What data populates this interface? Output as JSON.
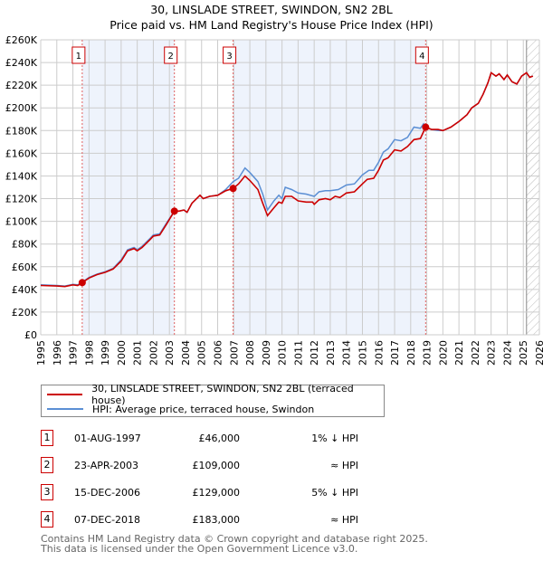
{
  "title": "30, LINSLADE STREET, SWINDON, SN2 2BL",
  "subtitle": "Price paid vs. HM Land Registry's House Price Index (HPI)",
  "colors": {
    "property": "#cc0000",
    "hpi": "#5b8fd4",
    "shade": "#eef3fc",
    "grid": "#cccccc"
  },
  "chart_data": {
    "type": "line",
    "title": "30, LINSLADE STREET, SWINDON, SN2 2BL",
    "subtitle": "Price paid vs. HM Land Registry's House Price Index (HPI)",
    "xlim": [
      1995,
      2026
    ],
    "ylim": [
      0,
      260000
    ],
    "x_ticks": [
      "1995",
      "1996",
      "1997",
      "1998",
      "1999",
      "2000",
      "2001",
      "2002",
      "2003",
      "2004",
      "2005",
      "2006",
      "2007",
      "2008",
      "2009",
      "2010",
      "2011",
      "2012",
      "2013",
      "2014",
      "2015",
      "2016",
      "2017",
      "2018",
      "2019",
      "2020",
      "2021",
      "2022",
      "2023",
      "2024",
      "2025",
      "2026"
    ],
    "y_ticks": [
      {
        "v": 0,
        "l": "£0"
      },
      {
        "v": 20000,
        "l": "£20K"
      },
      {
        "v": 40000,
        "l": "£40K"
      },
      {
        "v": 60000,
        "l": "£60K"
      },
      {
        "v": 80000,
        "l": "£80K"
      },
      {
        "v": 100000,
        "l": "£100K"
      },
      {
        "v": 120000,
        "l": "£120K"
      },
      {
        "v": 140000,
        "l": "£140K"
      },
      {
        "v": 160000,
        "l": "£160K"
      },
      {
        "v": 180000,
        "l": "£180K"
      },
      {
        "v": 200000,
        "l": "£200K"
      },
      {
        "v": 220000,
        "l": "£220K"
      },
      {
        "v": 240000,
        "l": "£240K"
      },
      {
        "v": 260000,
        "l": "£260K"
      }
    ],
    "grid": true,
    "shaded_ranges": [
      [
        1997.58,
        2003.31
      ],
      [
        2006.96,
        2018.93
      ]
    ],
    "forecast_from": 2025.2,
    "series": [
      {
        "name": "30, LINSLADE STREET, SWINDON, SN2 2BL (terraced house)",
        "color": "#cc0000",
        "points": [
          [
            1995,
            43.5
          ],
          [
            1996,
            43
          ],
          [
            1996.5,
            42.5
          ],
          [
            1997,
            44
          ],
          [
            1997.3,
            43.5
          ],
          [
            1997.58,
            46
          ],
          [
            1998,
            50
          ],
          [
            1998.5,
            53
          ],
          [
            1999,
            55
          ],
          [
            1999.5,
            58
          ],
          [
            2000,
            65
          ],
          [
            2000.4,
            74
          ],
          [
            2000.8,
            76
          ],
          [
            2001,
            74
          ],
          [
            2001.3,
            77
          ],
          [
            2001.8,
            84
          ],
          [
            2002,
            87
          ],
          [
            2002.4,
            88
          ],
          [
            2002.8,
            97
          ],
          [
            2003.31,
            109
          ],
          [
            2003.6,
            109
          ],
          [
            2003.9,
            110
          ],
          [
            2004.1,
            108
          ],
          [
            2004.4,
            116
          ],
          [
            2004.9,
            123
          ],
          [
            2005.1,
            120
          ],
          [
            2005.5,
            122
          ],
          [
            2006,
            123
          ],
          [
            2006.5,
            127
          ],
          [
            2006.96,
            129
          ],
          [
            2007.3,
            133
          ],
          [
            2007.7,
            140
          ],
          [
            2008,
            136
          ],
          [
            2008.5,
            128
          ],
          [
            2008.8,
            116
          ],
          [
            2009.1,
            105
          ],
          [
            2009.5,
            112
          ],
          [
            2009.8,
            117
          ],
          [
            2010,
            116
          ],
          [
            2010.2,
            122
          ],
          [
            2010.6,
            122
          ],
          [
            2011,
            118
          ],
          [
            2011.5,
            117
          ],
          [
            2011.9,
            117
          ],
          [
            2012,
            115
          ],
          [
            2012.3,
            119
          ],
          [
            2012.7,
            120
          ],
          [
            2013,
            119
          ],
          [
            2013.3,
            122
          ],
          [
            2013.6,
            121
          ],
          [
            2014,
            125
          ],
          [
            2014.5,
            126
          ],
          [
            2015,
            133
          ],
          [
            2015.3,
            137
          ],
          [
            2015.7,
            138
          ],
          [
            2016,
            145
          ],
          [
            2016.3,
            154
          ],
          [
            2016.6,
            156
          ],
          [
            2017,
            163
          ],
          [
            2017.4,
            162
          ],
          [
            2017.8,
            166
          ],
          [
            2018.2,
            172
          ],
          [
            2018.6,
            173
          ],
          [
            2018.93,
            183
          ],
          [
            2019.3,
            181
          ],
          [
            2019.7,
            181
          ],
          [
            2020,
            180
          ],
          [
            2020.5,
            183
          ],
          [
            2021,
            188
          ],
          [
            2021.5,
            194
          ],
          [
            2021.8,
            200
          ],
          [
            2022.2,
            204
          ],
          [
            2022.5,
            212
          ],
          [
            2022.8,
            222
          ],
          [
            2023,
            231
          ],
          [
            2023.3,
            228
          ],
          [
            2023.5,
            230
          ],
          [
            2023.8,
            225
          ],
          [
            2024,
            229
          ],
          [
            2024.3,
            223
          ],
          [
            2024.6,
            221
          ],
          [
            2024.9,
            228
          ],
          [
            2025.2,
            231
          ],
          [
            2025.4,
            227
          ],
          [
            2025.6,
            228
          ]
        ]
      },
      {
        "name": "HPI: Average price, terraced house, Swindon",
        "color": "#5b8fd4",
        "points": [
          [
            1995,
            44
          ],
          [
            1996,
            43.5
          ],
          [
            1996.5,
            43
          ],
          [
            1997,
            44.5
          ],
          [
            1997.3,
            44
          ],
          [
            1997.58,
            46.5
          ],
          [
            1998,
            50.5
          ],
          [
            1998.5,
            53.5
          ],
          [
            1999,
            55.5
          ],
          [
            1999.5,
            58.5
          ],
          [
            2000,
            66
          ],
          [
            2000.4,
            75
          ],
          [
            2000.8,
            77
          ],
          [
            2001,
            75
          ],
          [
            2001.3,
            78
          ],
          [
            2001.8,
            85
          ],
          [
            2002,
            88
          ],
          [
            2002.4,
            89
          ],
          [
            2002.8,
            98
          ],
          [
            2003.31,
            109
          ],
          [
            2003.6,
            109
          ],
          [
            2003.9,
            110
          ],
          [
            2004.1,
            108
          ],
          [
            2004.4,
            116
          ],
          [
            2004.9,
            123
          ],
          [
            2005.1,
            120
          ],
          [
            2005.5,
            122
          ],
          [
            2006,
            123
          ],
          [
            2006.5,
            128
          ],
          [
            2006.96,
            135
          ],
          [
            2007.3,
            138
          ],
          [
            2007.7,
            147
          ],
          [
            2008,
            143
          ],
          [
            2008.5,
            135
          ],
          [
            2008.8,
            124
          ],
          [
            2009.1,
            110
          ],
          [
            2009.5,
            118
          ],
          [
            2009.8,
            123
          ],
          [
            2010,
            120
          ],
          [
            2010.2,
            130
          ],
          [
            2010.6,
            128
          ],
          [
            2011,
            125
          ],
          [
            2011.5,
            124
          ],
          [
            2012,
            122
          ],
          [
            2012.3,
            126
          ],
          [
            2012.7,
            127
          ],
          [
            2013,
            127
          ],
          [
            2013.5,
            128
          ],
          [
            2014,
            132
          ],
          [
            2014.5,
            133
          ],
          [
            2015,
            141
          ],
          [
            2015.4,
            145
          ],
          [
            2015.7,
            145
          ],
          [
            2016,
            152
          ],
          [
            2016.3,
            161
          ],
          [
            2016.6,
            164
          ],
          [
            2017,
            172
          ],
          [
            2017.4,
            171
          ],
          [
            2017.8,
            174
          ],
          [
            2018.2,
            183
          ],
          [
            2018.6,
            182
          ],
          [
            2018.8,
            186
          ],
          [
            2018.93,
            183
          ],
          [
            2019.3,
            181
          ],
          [
            2019.7,
            180
          ],
          [
            2020,
            180
          ],
          [
            2020.5,
            183
          ],
          [
            2021,
            188
          ],
          [
            2021.5,
            194
          ],
          [
            2021.8,
            200
          ],
          [
            2022.2,
            204
          ],
          [
            2022.5,
            212
          ],
          [
            2022.8,
            222
          ],
          [
            2023,
            231
          ],
          [
            2023.3,
            228
          ],
          [
            2023.5,
            230
          ],
          [
            2023.8,
            225
          ],
          [
            2024,
            229
          ],
          [
            2024.3,
            223
          ],
          [
            2024.6,
            221
          ],
          [
            2024.9,
            228
          ],
          [
            2025.2,
            231
          ],
          [
            2025.4,
            227
          ],
          [
            2025.6,
            228
          ]
        ]
      }
    ],
    "sales": [
      {
        "n": "1",
        "x": 1997.58,
        "y": 46
      },
      {
        "n": "2",
        "x": 2003.31,
        "y": 109
      },
      {
        "n": "3",
        "x": 2006.96,
        "y": 129
      },
      {
        "n": "4",
        "x": 2018.93,
        "y": 183
      }
    ]
  },
  "legend": [
    {
      "label": "30, LINSLADE STREET, SWINDON, SN2 2BL (terraced house)"
    },
    {
      "label": "HPI: Average price, terraced house, Swindon"
    }
  ],
  "transactions": [
    {
      "n": "1",
      "date": "01-AUG-1997",
      "price": "£46,000",
      "vs": "1% ↓ HPI"
    },
    {
      "n": "2",
      "date": "23-APR-2003",
      "price": "£109,000",
      "vs": "≈ HPI"
    },
    {
      "n": "3",
      "date": "15-DEC-2006",
      "price": "£129,000",
      "vs": "5% ↓ HPI"
    },
    {
      "n": "4",
      "date": "07-DEC-2018",
      "price": "£183,000",
      "vs": "≈ HPI"
    }
  ],
  "footer": {
    "line1": "Contains HM Land Registry data © Crown copyright and database right 2025.",
    "line2": "This data is licensed under the Open Government Licence v3.0."
  }
}
